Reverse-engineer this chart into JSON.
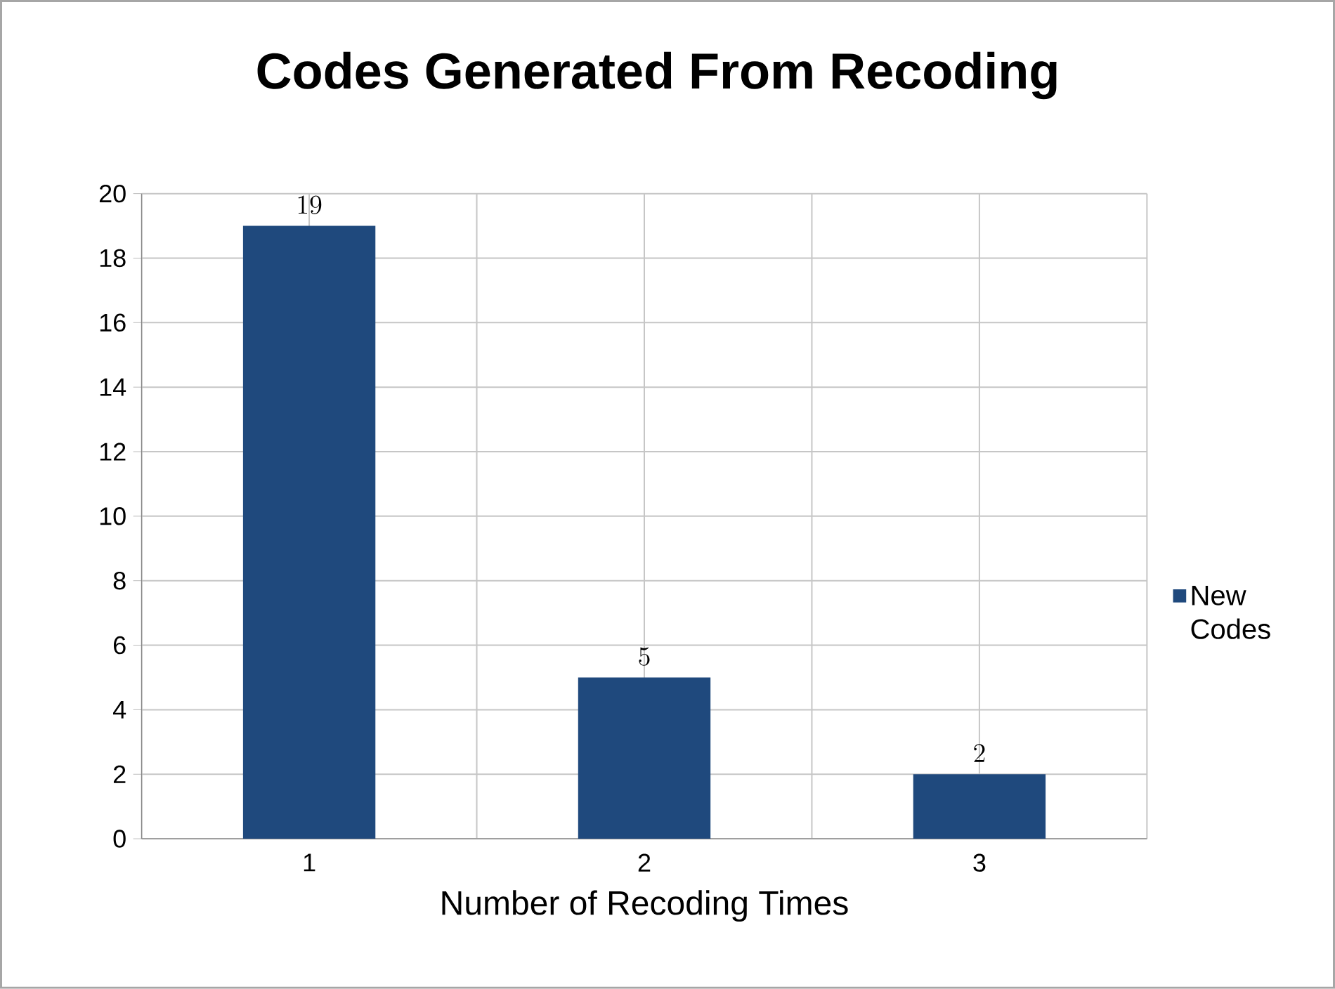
{
  "chart_data": {
    "type": "bar",
    "title": "Codes Generated From Recoding",
    "xlabel": "Number of Recoding Times",
    "categories": [
      "1",
      "2",
      "3"
    ],
    "series": [
      {
        "name": "New Codes",
        "color": "#1f497d",
        "values": [
          19,
          5,
          2
        ]
      }
    ],
    "ylim": [
      0,
      20
    ],
    "yticks": [
      0,
      2,
      4,
      6,
      8,
      10,
      12,
      14,
      16,
      18,
      20
    ],
    "grid": true,
    "legend": "right",
    "data_labels": true
  }
}
